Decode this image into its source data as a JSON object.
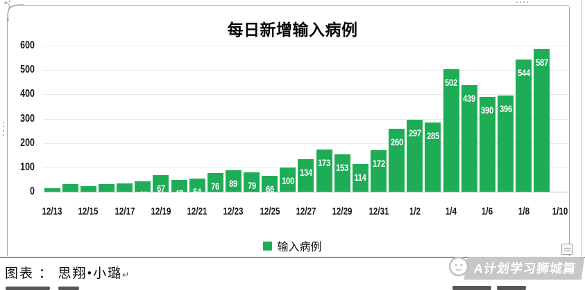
{
  "title": "每日新增输入病例",
  "legend": {
    "label": "输入病例",
    "swatch_color": "#1ead56"
  },
  "footer": {
    "credit": "图表 ： 思翔•小璐",
    "return_mark": "↵"
  },
  "watermark": {
    "text": "A计划学习狮城篇",
    "icon": "lion-face-icon"
  },
  "chart_data": {
    "type": "bar",
    "title": "每日新增输入病例",
    "x": [
      "12/13",
      "12/14",
      "12/15",
      "12/16",
      "12/17",
      "12/18",
      "12/19",
      "12/20",
      "12/21",
      "12/22",
      "12/23",
      "12/24",
      "12/25",
      "12/26",
      "12/27",
      "12/28",
      "12/29",
      "12/30",
      "12/31",
      "1/1",
      "1/2",
      "1/3",
      "1/4",
      "1/5",
      "1/6",
      "1/7",
      "1/8",
      "1/9"
    ],
    "values": [
      14,
      30,
      22,
      30,
      35,
      44,
      67,
      49,
      54,
      76,
      89,
      79,
      66,
      100,
      134,
      173,
      153,
      114,
      172,
      260,
      297,
      285,
      502,
      439,
      390,
      396,
      544,
      587
    ],
    "x_tick_labels": [
      "12/13",
      "12/15",
      "12/17",
      "12/19",
      "12/21",
      "12/23",
      "12/25",
      "12/27",
      "12/29",
      "12/31",
      "1/2",
      "1/4",
      "1/6",
      "1/8",
      "1/10"
    ],
    "y_ticks": [
      0,
      100,
      200,
      300,
      400,
      500,
      600
    ],
    "ylim": [
      0,
      600
    ],
    "xlabel": "",
    "ylabel": "",
    "bar_color": "#1ead56",
    "value_label_color": "#ffffff",
    "grid": true,
    "legend_entries": [
      "输入病例"
    ],
    "legend_position": "bottom"
  }
}
